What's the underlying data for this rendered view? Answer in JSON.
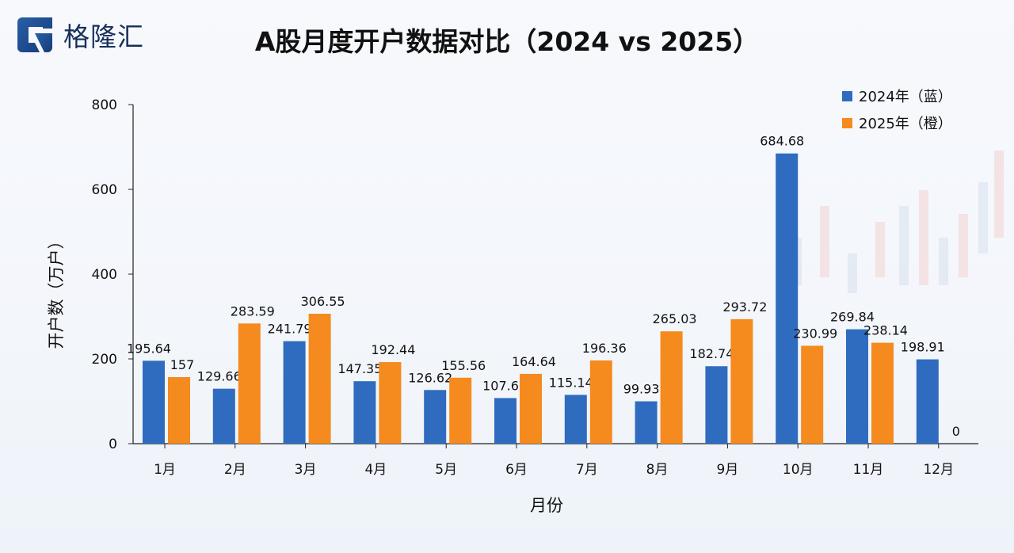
{
  "logo": {
    "text": "格隆汇"
  },
  "chart_data": {
    "type": "bar",
    "title": "A股月度开户数据对比（2024 vs 2025）",
    "xlabel": "月份",
    "ylabel": "开户数（万户）",
    "ylim": [
      0,
      800
    ],
    "yticks": [
      0,
      200,
      400,
      600,
      800
    ],
    "grid": false,
    "legend_position": "top-right",
    "categories": [
      "1月",
      "2月",
      "3月",
      "4月",
      "5月",
      "6月",
      "7月",
      "8月",
      "9月",
      "10月",
      "11月",
      "12月"
    ],
    "series": [
      {
        "name": "2024年（蓝）",
        "color": "#2f6cbf",
        "values": [
          195.64,
          129.66,
          241.79,
          147.35,
          126.62,
          107.6,
          115.14,
          99.93,
          182.74,
          684.68,
          269.84,
          198.91
        ]
      },
      {
        "name": "2025年（橙）",
        "color": "#f58a1f",
        "values": [
          157,
          283.59,
          306.55,
          192.44,
          155.56,
          164.64,
          196.36,
          265.03,
          293.72,
          230.99,
          238.14,
          0
        ]
      }
    ]
  }
}
